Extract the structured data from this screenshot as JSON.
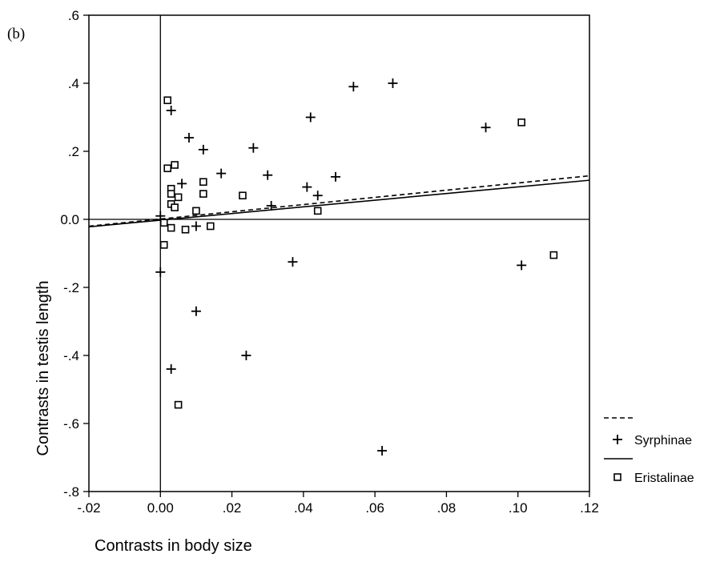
{
  "chart_data": {
    "type": "scatter",
    "panel_label": "(b)",
    "xlabel": "Contrasts in body size",
    "ylabel": "Contrasts in testis length",
    "xlim": [
      -0.02,
      0.12
    ],
    "ylim": [
      -0.8,
      0.6
    ],
    "x_ticks": [
      -0.02,
      0,
      0.02,
      0.04,
      0.06,
      0.08,
      0.1,
      0.12
    ],
    "x_tick_labels": [
      "-.02",
      "0.00",
      ".02",
      ".04",
      ".06",
      ".08",
      ".10",
      ".12"
    ],
    "y_ticks": [
      0.6,
      0.4,
      0.2,
      0,
      -0.2,
      -0.4,
      -0.6,
      -0.8
    ],
    "y_tick_labels": [
      ".6",
      ".4",
      ".2",
      "0.0",
      "-.2",
      "-.4",
      "-.6",
      "-.8"
    ],
    "grid": false,
    "legend_position": "right",
    "reference_lines": {
      "x": 0,
      "y": 0
    },
    "series": [
      {
        "name": "Syrphinae",
        "marker": "plus",
        "line_style": "dashed",
        "fit_line": [
          [
            -0.02,
            -0.02
          ],
          [
            0.12,
            0.128
          ]
        ],
        "points": [
          [
            0.065,
            0.4
          ],
          [
            0.054,
            0.39
          ],
          [
            0.003,
            0.32
          ],
          [
            0.042,
            0.3
          ],
          [
            0.091,
            0.27
          ],
          [
            0.008,
            0.24
          ],
          [
            0.026,
            0.21
          ],
          [
            0.012,
            0.205
          ],
          [
            0.017,
            0.135
          ],
          [
            0.03,
            0.13
          ],
          [
            0.049,
            0.125
          ],
          [
            0.006,
            0.105
          ],
          [
            0.041,
            0.095
          ],
          [
            0.044,
            0.07
          ],
          [
            0.031,
            0.04
          ],
          [
            0.01,
            -0.02
          ],
          [
            0.0,
            0.01
          ],
          [
            0.037,
            -0.125
          ],
          [
            0.101,
            -0.135
          ],
          [
            0.0,
            -0.155
          ],
          [
            0.01,
            -0.27
          ],
          [
            0.024,
            -0.4
          ],
          [
            0.003,
            -0.44
          ],
          [
            0.062,
            -0.68
          ]
        ]
      },
      {
        "name": "Eristalinae",
        "marker": "square",
        "line_style": "solid",
        "fit_line": [
          [
            -0.02,
            -0.022
          ],
          [
            0.12,
            0.115
          ]
        ],
        "points": [
          [
            0.002,
            0.35
          ],
          [
            0.101,
            0.285
          ],
          [
            0.004,
            0.16
          ],
          [
            0.002,
            0.15
          ],
          [
            0.012,
            0.11
          ],
          [
            0.003,
            0.09
          ],
          [
            0.003,
            0.075
          ],
          [
            0.012,
            0.075
          ],
          [
            0.023,
            0.07
          ],
          [
            0.005,
            0.065
          ],
          [
            0.003,
            0.045
          ],
          [
            0.004,
            0.035
          ],
          [
            0.01,
            0.025
          ],
          [
            0.044,
            0.025
          ],
          [
            0.001,
            -0.01
          ],
          [
            0.003,
            -0.025
          ],
          [
            0.007,
            -0.03
          ],
          [
            0.014,
            -0.02
          ],
          [
            0.001,
            -0.075
          ],
          [
            0.11,
            -0.105
          ],
          [
            0.005,
            -0.545
          ]
        ]
      }
    ]
  }
}
